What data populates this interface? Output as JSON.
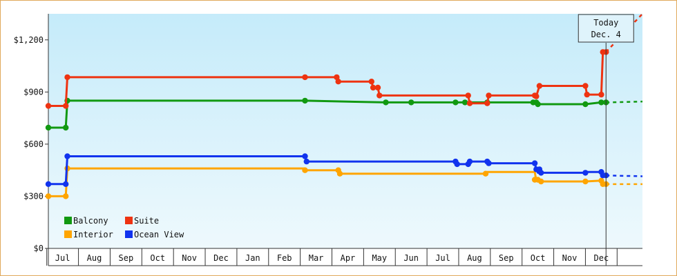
{
  "chart_data": {
    "type": "line",
    "title": "",
    "xlabel": "",
    "ylabel": "",
    "ylim": [
      0,
      1350
    ],
    "yticks": [
      {
        "value": 0,
        "label": "$0"
      },
      {
        "value": 300,
        "label": "$300"
      },
      {
        "value": 600,
        "label": "$600"
      },
      {
        "value": 900,
        "label": "$900"
      },
      {
        "value": 1200,
        "label": "$1,200"
      }
    ],
    "xlim": [
      -0.45,
      18.3
    ],
    "months": [
      "Jul",
      "Aug",
      "Sep",
      "Oct",
      "Nov",
      "Dec",
      "Jan",
      "Feb",
      "Mar",
      "Apr",
      "May",
      "Jun",
      "Jul",
      "Aug",
      "Sep",
      "Oct",
      "Nov",
      "Dec"
    ],
    "today": {
      "x": 17.15,
      "line1": "Today",
      "line2": "Dec. 4"
    },
    "grid": false,
    "legend_position": "bottom-left",
    "series": [
      {
        "name": "Balcony",
        "color": "#119911",
        "forecast_end": 845,
        "points": [
          [
            -0.45,
            695
          ],
          [
            0.1,
            695
          ],
          [
            0.15,
            850
          ],
          [
            7.65,
            850
          ],
          [
            10.2,
            840
          ],
          [
            11.0,
            840
          ],
          [
            12.4,
            840
          ],
          [
            12.7,
            840
          ],
          [
            13.4,
            840
          ],
          [
            14.9,
            840
          ],
          [
            15.0,
            830
          ],
          [
            16.5,
            830
          ],
          [
            17.0,
            840
          ],
          [
            17.15,
            840
          ]
        ],
        "markers": [
          [
            -0.45,
            695
          ],
          [
            0.1,
            695
          ],
          [
            0.15,
            850
          ],
          [
            7.65,
            850
          ],
          [
            10.2,
            840
          ],
          [
            11.0,
            840
          ],
          [
            12.4,
            840
          ],
          [
            12.7,
            840
          ],
          [
            13.4,
            840
          ],
          [
            14.85,
            840
          ],
          [
            14.95,
            840
          ],
          [
            15.0,
            830
          ],
          [
            16.5,
            830
          ],
          [
            17.0,
            840
          ],
          [
            17.15,
            840
          ]
        ]
      },
      {
        "name": "Suite",
        "color": "#ee3311",
        "forecast_end": 1350,
        "points": [
          [
            -0.45,
            820
          ],
          [
            0.1,
            820
          ],
          [
            0.15,
            985
          ],
          [
            7.65,
            985
          ],
          [
            8.65,
            985
          ],
          [
            8.7,
            960
          ],
          [
            9.75,
            960
          ],
          [
            9.8,
            925
          ],
          [
            9.95,
            925
          ],
          [
            10.0,
            880
          ],
          [
            12.8,
            880
          ],
          [
            12.85,
            835
          ],
          [
            13.4,
            835
          ],
          [
            13.45,
            880
          ],
          [
            14.9,
            880
          ],
          [
            14.95,
            875
          ],
          [
            15.05,
            935
          ],
          [
            16.5,
            935
          ],
          [
            16.55,
            885
          ],
          [
            17.0,
            885
          ],
          [
            17.05,
            1130
          ],
          [
            17.15,
            1130
          ]
        ],
        "markers": [
          [
            -0.45,
            820
          ],
          [
            0.1,
            820
          ],
          [
            0.15,
            985
          ],
          [
            7.65,
            985
          ],
          [
            8.65,
            985
          ],
          [
            8.7,
            960
          ],
          [
            9.75,
            960
          ],
          [
            9.8,
            925
          ],
          [
            9.95,
            925
          ],
          [
            10.0,
            880
          ],
          [
            12.8,
            880
          ],
          [
            12.85,
            835
          ],
          [
            13.4,
            835
          ],
          [
            13.45,
            880
          ],
          [
            14.9,
            880
          ],
          [
            14.95,
            875
          ],
          [
            15.05,
            935
          ],
          [
            16.5,
            935
          ],
          [
            16.55,
            885
          ],
          [
            17.0,
            885
          ],
          [
            17.05,
            1130
          ],
          [
            17.15,
            1130
          ]
        ]
      },
      {
        "name": "Interior",
        "color": "#ffa500",
        "forecast_end": 370,
        "points": [
          [
            -0.45,
            300
          ],
          [
            0.1,
            300
          ],
          [
            0.15,
            460
          ],
          [
            7.65,
            460
          ],
          [
            7.7,
            450
          ],
          [
            8.7,
            450
          ],
          [
            8.75,
            430
          ],
          [
            13.35,
            430
          ],
          [
            13.4,
            440
          ],
          [
            14.9,
            440
          ],
          [
            14.95,
            390
          ],
          [
            15.1,
            385
          ],
          [
            16.5,
            385
          ],
          [
            17.0,
            390
          ],
          [
            17.05,
            370
          ],
          [
            17.15,
            370
          ]
        ],
        "markers": [
          [
            -0.45,
            300
          ],
          [
            0.1,
            300
          ],
          [
            0.15,
            460
          ],
          [
            7.65,
            450
          ],
          [
            8.7,
            450
          ],
          [
            8.75,
            430
          ],
          [
            13.35,
            430
          ],
          [
            14.9,
            395
          ],
          [
            15.0,
            395
          ],
          [
            15.1,
            385
          ],
          [
            16.5,
            385
          ],
          [
            17.0,
            390
          ],
          [
            17.05,
            370
          ],
          [
            17.15,
            370
          ]
        ]
      },
      {
        "name": "Ocean View",
        "color": "#1133ee",
        "forecast_end": 415,
        "points": [
          [
            -0.45,
            370
          ],
          [
            0.1,
            370
          ],
          [
            0.15,
            530
          ],
          [
            7.65,
            530
          ],
          [
            7.7,
            500
          ],
          [
            12.4,
            500
          ],
          [
            12.45,
            485
          ],
          [
            12.8,
            485
          ],
          [
            12.85,
            500
          ],
          [
            13.4,
            500
          ],
          [
            13.45,
            490
          ],
          [
            14.9,
            490
          ],
          [
            14.95,
            455
          ],
          [
            15.0,
            435
          ],
          [
            16.5,
            435
          ],
          [
            16.55,
            440
          ],
          [
            17.0,
            440
          ],
          [
            17.05,
            420
          ],
          [
            17.15,
            420
          ]
        ],
        "markers": [
          [
            -0.45,
            370
          ],
          [
            0.1,
            370
          ],
          [
            0.15,
            530
          ],
          [
            7.65,
            530
          ],
          [
            7.7,
            500
          ],
          [
            12.4,
            500
          ],
          [
            12.45,
            485
          ],
          [
            12.8,
            485
          ],
          [
            12.85,
            500
          ],
          [
            13.4,
            500
          ],
          [
            13.45,
            490
          ],
          [
            14.9,
            490
          ],
          [
            14.95,
            455
          ],
          [
            15.05,
            455
          ],
          [
            15.1,
            435
          ],
          [
            16.5,
            435
          ],
          [
            17.0,
            440
          ],
          [
            17.05,
            420
          ],
          [
            17.15,
            420
          ]
        ]
      }
    ],
    "legend": [
      {
        "name": "Balcony",
        "color": "#119911"
      },
      {
        "name": "Suite",
        "color": "#ee3311"
      },
      {
        "name": "Interior",
        "color": "#ffa500"
      },
      {
        "name": "Ocean View",
        "color": "#1133ee"
      }
    ]
  }
}
